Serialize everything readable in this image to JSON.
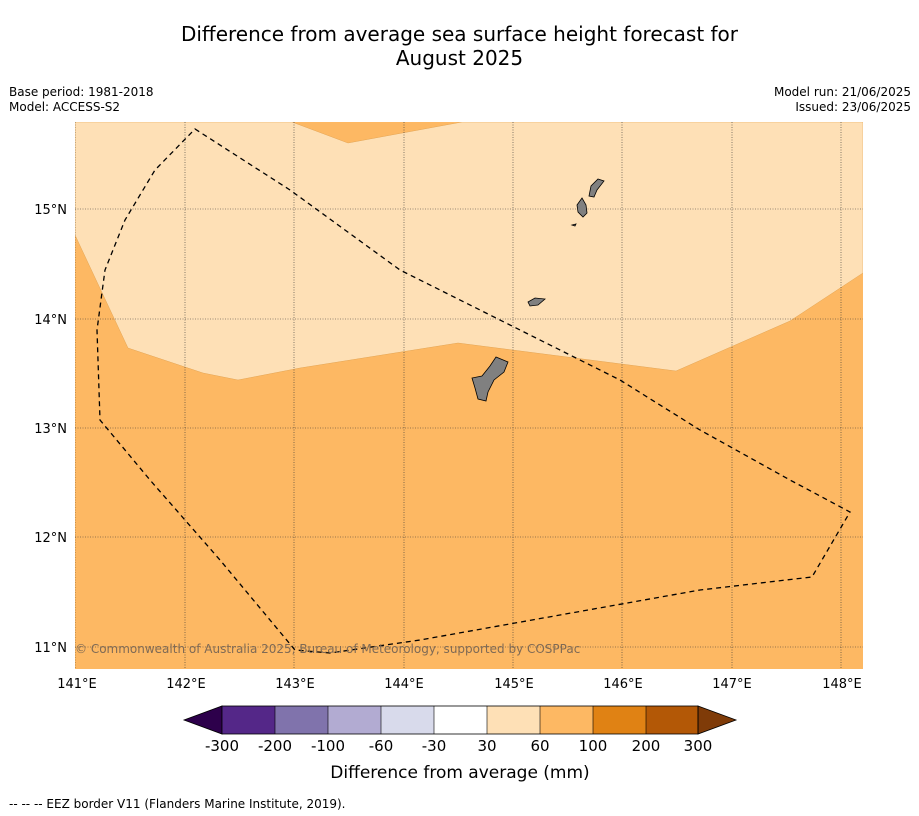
{
  "title_line1": "Difference from average sea surface height forecast for",
  "title_line2": "August 2025",
  "base_period": "Base period: 1981-2018",
  "model": "Model: ACCESS-S2",
  "model_run": "Model run: 21/06/2025",
  "issued": "Issued: 23/06/2025",
  "copyright": "© Commonwealth of Australia 2025, Bureau of Meteorology, supported by COSPPac",
  "lat_labels": [
    "15°N",
    "14°N",
    "13°N",
    "12°N",
    "11°N"
  ],
  "lon_labels": [
    "141°E",
    "142°E",
    "143°E",
    "144°E",
    "145°E",
    "146°E",
    "147°E",
    "148°E"
  ],
  "colorbar": {
    "ticks": [
      "-300",
      "-200",
      "-100",
      "-60",
      "-30",
      "30",
      "60",
      "100",
      "200",
      "300"
    ],
    "colors": [
      "#2d004b",
      "#542788",
      "#8073ac",
      "#b2abd2",
      "#d8daeb",
      "#ffffff",
      "#fee0b6",
      "#fdb863",
      "#e08214",
      "#b35806",
      "#7f3b08"
    ],
    "label": "Difference from average (mm)"
  },
  "map_colors": {
    "band_30_60": "#fee0b6",
    "band_60_100": "#fdb863",
    "land": "#808080"
  },
  "legend_note": "--  --  -- EEZ border V11 (Flanders Marine Institute, 2019)."
}
